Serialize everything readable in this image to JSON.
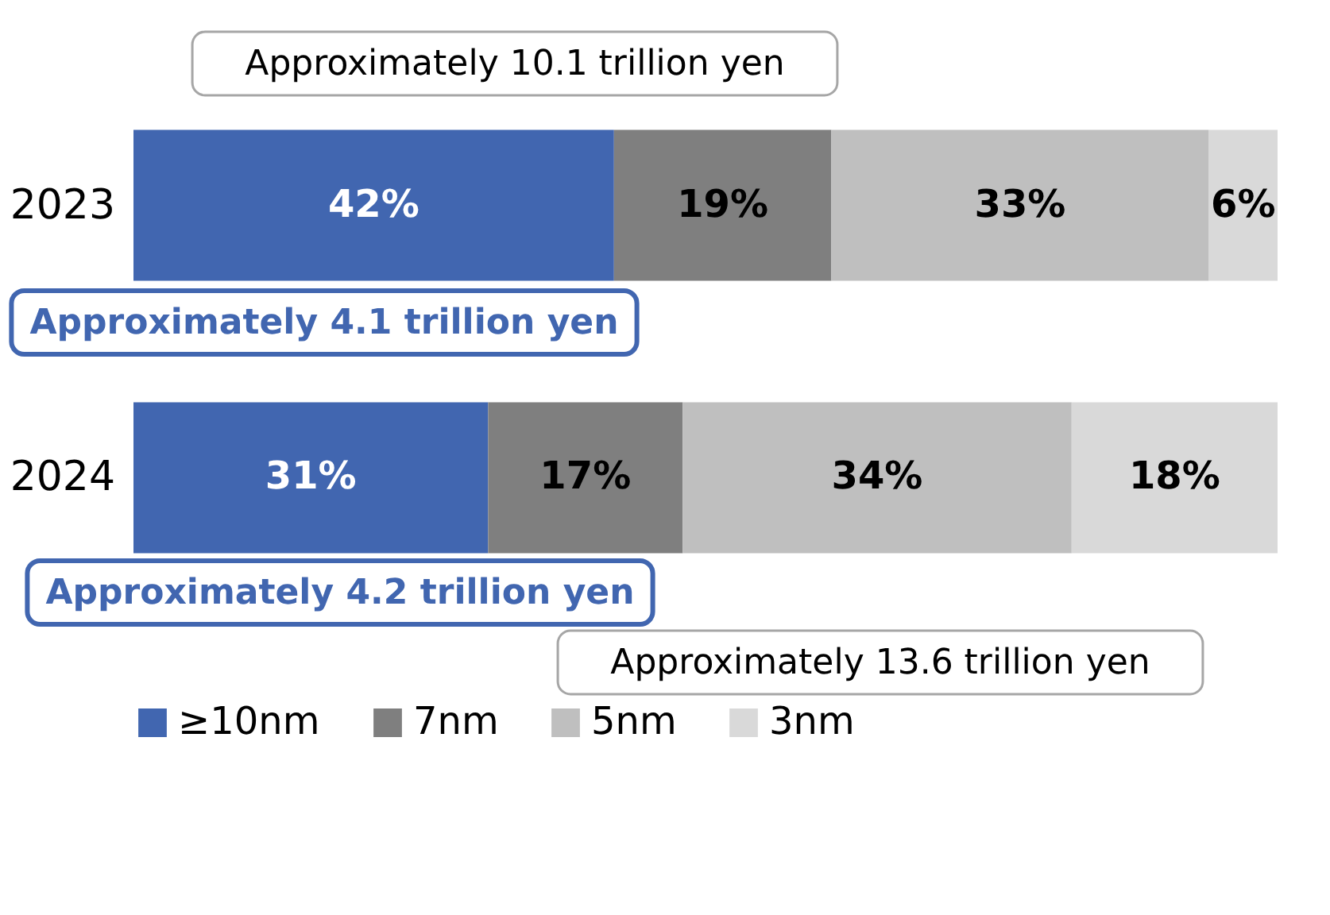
{
  "chart_data": {
    "type": "bar",
    "orientation": "horizontal",
    "stacked": true,
    "categories": [
      "2023",
      "2024"
    ],
    "series": [
      {
        "name": "≥10nm",
        "color": "#4166b0",
        "values": [
          42,
          31
        ],
        "value_labels": [
          "42%",
          "31%"
        ]
      },
      {
        "name": "7nm",
        "color": "#7f7f7f",
        "values": [
          19,
          17
        ],
        "value_labels": [
          "19%",
          "17%"
        ]
      },
      {
        "name": "5nm",
        "color": "#bfbfbf",
        "values": [
          33,
          34
        ],
        "value_labels": [
          "33%",
          "34%"
        ]
      },
      {
        "name": "3nm",
        "color": "#d9d9d9",
        "values": [
          6,
          18
        ],
        "value_labels": [
          "6%",
          "18%"
        ]
      }
    ],
    "annotations": [
      "Approximately 10.1 trillion yen",
      "Approximately 4.1 trillion yen",
      "Approximately 4.2 trillion yen",
      "Approximately 13.6 trillion yen"
    ],
    "tick_labels": "y",
    "legend": "bottom",
    "grid": false
  }
}
